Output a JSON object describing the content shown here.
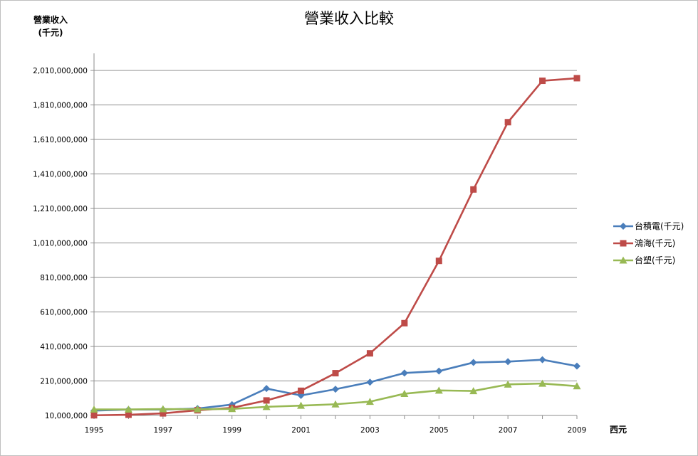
{
  "chart_data": {
    "type": "line",
    "title": "營業收入比較",
    "ylabel_line1": "營業收入",
    "ylabel_line2": "(千元)",
    "xlabel": "西元",
    "x": [
      1995,
      1996,
      1997,
      1998,
      1999,
      2000,
      2001,
      2002,
      2003,
      2004,
      2005,
      2006,
      2007,
      2008,
      2009
    ],
    "x_tick_labels": [
      "1995",
      "1997",
      "1999",
      "2001",
      "2003",
      "2005",
      "2007",
      "2009"
    ],
    "x_tick_values": [
      1995,
      1997,
      1999,
      2001,
      2003,
      2005,
      2007,
      2009
    ],
    "xlim": [
      1995,
      2009
    ],
    "ylim": [
      10000000,
      2010000000
    ],
    "y_tick_values": [
      10000000,
      210000000,
      410000000,
      610000000,
      810000000,
      1010000000,
      1210000000,
      1410000000,
      1610000000,
      1810000000,
      2010000000
    ],
    "y_tick_labels": [
      "10,000,000",
      "210,000,000",
      "410,000,000",
      "610,000,000",
      "810,000,000",
      "1,010,000,000",
      "1,210,000,000",
      "1,410,000,000",
      "1,610,000,000",
      "1,810,000,000",
      "2,010,000,000"
    ],
    "grid": true,
    "legend_position": "right",
    "series": [
      {
        "name": "台積電(千元)",
        "color": "#4a7ebb",
        "marker": "diamond",
        "values": [
          38000000,
          44000000,
          44000000,
          50000000,
          73000000,
          166000000,
          126000000,
          162000000,
          203000000,
          256000000,
          267000000,
          317000000,
          322000000,
          333000000,
          296000000
        ]
      },
      {
        "name": "鴻海(千元)",
        "color": "#be4b48",
        "marker": "square",
        "values": [
          11000000,
          14000000,
          22000000,
          40000000,
          54000000,
          97000000,
          153000000,
          255000000,
          370000000,
          545000000,
          906000000,
          1320000000,
          1710000000,
          1950000000,
          1965000000
        ]
      },
      {
        "name": "台塑(千元)",
        "color": "#98b954",
        "marker": "triangle",
        "values": [
          45000000,
          45000000,
          47000000,
          46000000,
          48000000,
          60000000,
          67000000,
          75000000,
          90000000,
          136000000,
          155000000,
          152000000,
          190000000,
          195000000,
          180000000
        ]
      }
    ]
  }
}
